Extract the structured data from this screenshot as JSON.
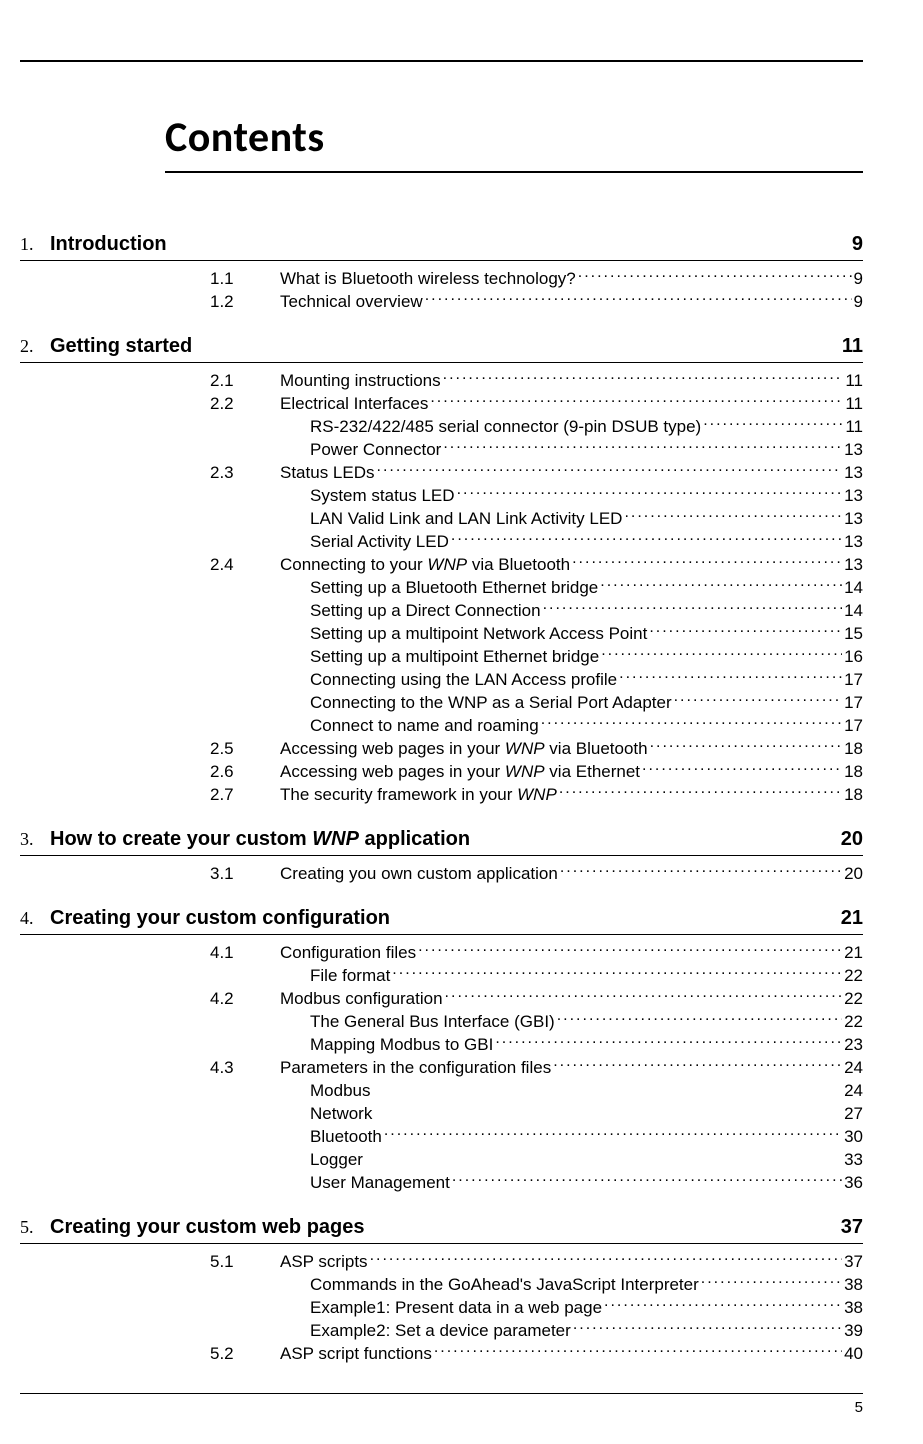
{
  "title": "Contents",
  "page_number": "5",
  "chapters": [
    {
      "num": "1.",
      "title_plain": "Introduction",
      "title_italic": "",
      "page": "9",
      "entries": [
        {
          "level": 1,
          "num": "1.1",
          "label": "What is Bluetooth wireless technology?",
          "page": "9"
        },
        {
          "level": 1,
          "num": "1.2",
          "label": "Technical overview",
          "page": "9"
        }
      ]
    },
    {
      "num": "2.",
      "title_plain": "Getting started",
      "title_italic": "",
      "page": "11",
      "entries": [
        {
          "level": 1,
          "num": "2.1",
          "label": "Mounting instructions",
          "page": "11"
        },
        {
          "level": 1,
          "num": "2.2",
          "label": "Electrical Interfaces",
          "page": "11"
        },
        {
          "level": 2,
          "num": "",
          "label": "RS-232/422/485 serial connector (9-pin DSUB type)",
          "page": "11"
        },
        {
          "level": 2,
          "num": "",
          "label": "Power Connector",
          "page": "13"
        },
        {
          "level": 1,
          "num": "2.3",
          "label": "Status LEDs",
          "page": "13"
        },
        {
          "level": 2,
          "num": "",
          "label": "System status LED",
          "page": "13"
        },
        {
          "level": 2,
          "num": "",
          "label": "LAN Valid Link and LAN Link Activity LED",
          "page": "13"
        },
        {
          "level": 2,
          "num": "",
          "label": "Serial Activity LED",
          "page": "13"
        },
        {
          "level": 1,
          "num": "2.4",
          "label": "Connecting to your ",
          "label_italic": "WNP",
          "label_after": " via Bluetooth",
          "page": "13"
        },
        {
          "level": 2,
          "num": "",
          "label": "Setting up a Bluetooth Ethernet bridge",
          "page": "14"
        },
        {
          "level": 2,
          "num": "",
          "label": "Setting up a Direct Connection",
          "page": "14"
        },
        {
          "level": 2,
          "num": "",
          "label": "Setting up a multipoint Network Access Point",
          "page": "15"
        },
        {
          "level": 2,
          "num": "",
          "label": "Setting up a multipoint Ethernet bridge",
          "page": "16"
        },
        {
          "level": 2,
          "num": "",
          "label": "Connecting using the LAN Access profile",
          "page": "17"
        },
        {
          "level": 2,
          "num": "",
          "label": "Connecting to the WNP as a Serial Port Adapter",
          "page": "17"
        },
        {
          "level": 2,
          "num": "",
          "label": "Connect to name and roaming",
          "page": "17"
        },
        {
          "level": 1,
          "num": "2.5",
          "label": "Accessing web pages in your ",
          "label_italic": "WNP",
          "label_after": " via Bluetooth",
          "page": "18"
        },
        {
          "level": 1,
          "num": "2.6",
          "label": "Accessing web pages in your ",
          "label_italic": "WNP",
          "label_after": " via Ethernet",
          "page": "18"
        },
        {
          "level": 1,
          "num": "2.7",
          "label": "The security framework in your ",
          "label_italic": "WNP",
          "label_after": "",
          "page": "18"
        }
      ]
    },
    {
      "num": "3.",
      "title_plain": "How to create your custom ",
      "title_italic": "WNP",
      "title_after": " application",
      "page": "20",
      "entries": [
        {
          "level": 1,
          "num": "3.1",
          "label": "Creating you own custom application",
          "page": "20"
        }
      ]
    },
    {
      "num": "4.",
      "title_plain": "Creating your custom configuration",
      "title_italic": "",
      "page": "21",
      "entries": [
        {
          "level": 1,
          "num": "4.1",
          "label": "Configuration files",
          "page": "21"
        },
        {
          "level": 2,
          "num": "",
          "label": "File format",
          "page": "22"
        },
        {
          "level": 1,
          "num": "4.2",
          "label": "Modbus configuration",
          "page": "22"
        },
        {
          "level": 2,
          "num": "",
          "label": "The General Bus Interface (GBI)",
          "page": "22"
        },
        {
          "level": 2,
          "num": "",
          "label": "Mapping Modbus to GBI",
          "page": "23"
        },
        {
          "level": 1,
          "num": "4.3",
          "label": "Parameters in the configuration files",
          "page": "24"
        },
        {
          "level": 2,
          "num": "",
          "label": "Modbus",
          "page": "24",
          "noleader": true
        },
        {
          "level": 2,
          "num": "",
          "label": "Network",
          "page": "27",
          "noleader": true
        },
        {
          "level": 2,
          "num": "",
          "label": "Bluetooth",
          "page": "30"
        },
        {
          "level": 2,
          "num": "",
          "label": "Logger",
          "page": "33",
          "noleader": true
        },
        {
          "level": 2,
          "num": "",
          "label": "User Management",
          "page": "36"
        }
      ]
    },
    {
      "num": "5.",
      "title_plain": "Creating your custom web pages",
      "title_italic": "",
      "page": "37",
      "entries": [
        {
          "level": 1,
          "num": "5.1",
          "label": "ASP scripts",
          "page": "37"
        },
        {
          "level": 2,
          "num": "",
          "label": "Commands in the GoAhead's JavaScript Interpreter",
          "page": "38"
        },
        {
          "level": 2,
          "num": "",
          "label": "Example1: Present data in a web page",
          "page": "38"
        },
        {
          "level": 2,
          "num": "",
          "label": "Example2: Set a device parameter",
          "page": "39"
        },
        {
          "level": 1,
          "num": "5.2",
          "label": "ASP script functions",
          "page": "40"
        }
      ]
    }
  ]
}
